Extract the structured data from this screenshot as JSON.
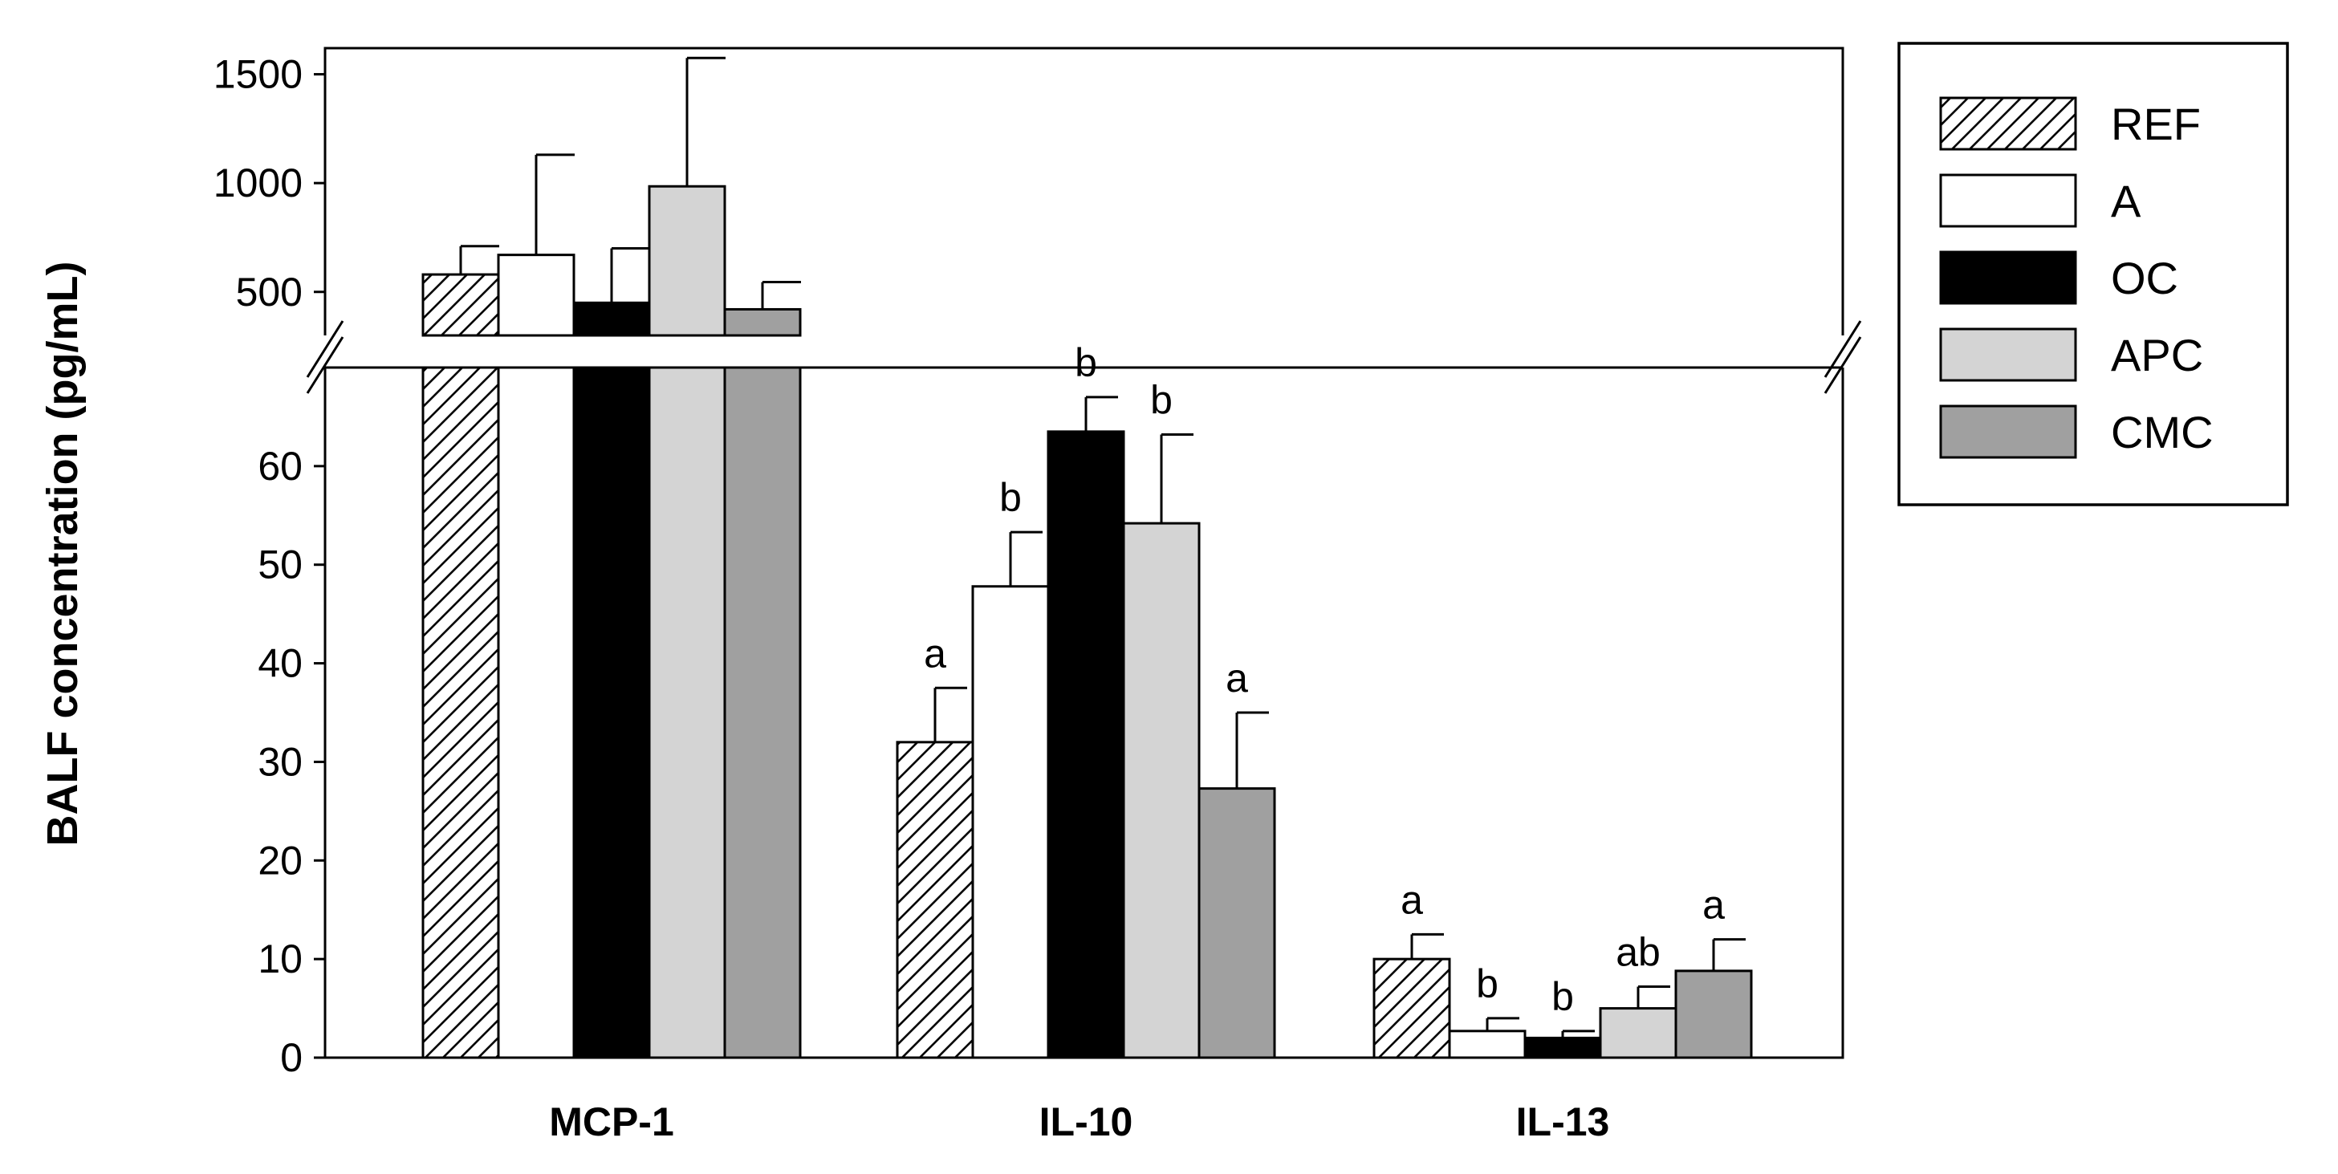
{
  "chart_data": {
    "type": "bar",
    "title": "",
    "xlabel": "",
    "ylabel": "BALF concentration (pg/mL)",
    "categories": [
      "MCP-1",
      "IL-10",
      "IL-13"
    ],
    "broken_axis": {
      "lower_ylim": [
        0,
        70
      ],
      "lower_ticks": [
        "0",
        "10",
        "20",
        "30",
        "40",
        "50",
        "60"
      ],
      "upper_ylim": [
        300,
        1620
      ],
      "upper_ticks": [
        "500",
        "1000",
        "1500"
      ]
    },
    "series": [
      {
        "name": "REF",
        "pattern": "hatch",
        "color": "#ffffff",
        "values": [
          580,
          32,
          10
        ],
        "errors": [
          130,
          5.5,
          2.5
        ],
        "labels": [
          "",
          "a",
          "a"
        ]
      },
      {
        "name": "A",
        "pattern": "solid",
        "color": "#ffffff",
        "values": [
          670,
          47.8,
          2.7
        ],
        "errors": [
          460,
          5.5,
          1.3
        ],
        "labels": [
          "",
          "b",
          "b"
        ]
      },
      {
        "name": "OC",
        "pattern": "solid",
        "color": "#000000",
        "values": [
          450,
          63.5,
          2.0
        ],
        "errors": [
          250,
          3.5,
          0.7
        ],
        "labels": [
          "",
          "b",
          "b"
        ]
      },
      {
        "name": "APC",
        "pattern": "solid",
        "color": "#d4d4d4",
        "values": [
          985,
          54.2,
          5.0
        ],
        "errors": [
          590,
          9.0,
          2.2
        ],
        "labels": [
          "",
          "b",
          "ab"
        ]
      },
      {
        "name": "CMC",
        "pattern": "solid",
        "color": "#a0a0a0",
        "values": [
          420,
          27.3,
          8.8
        ],
        "errors": [
          125,
          7.7,
          3.2
        ],
        "labels": [
          "",
          "a",
          "a"
        ]
      }
    ],
    "legend_position": "top-right"
  }
}
